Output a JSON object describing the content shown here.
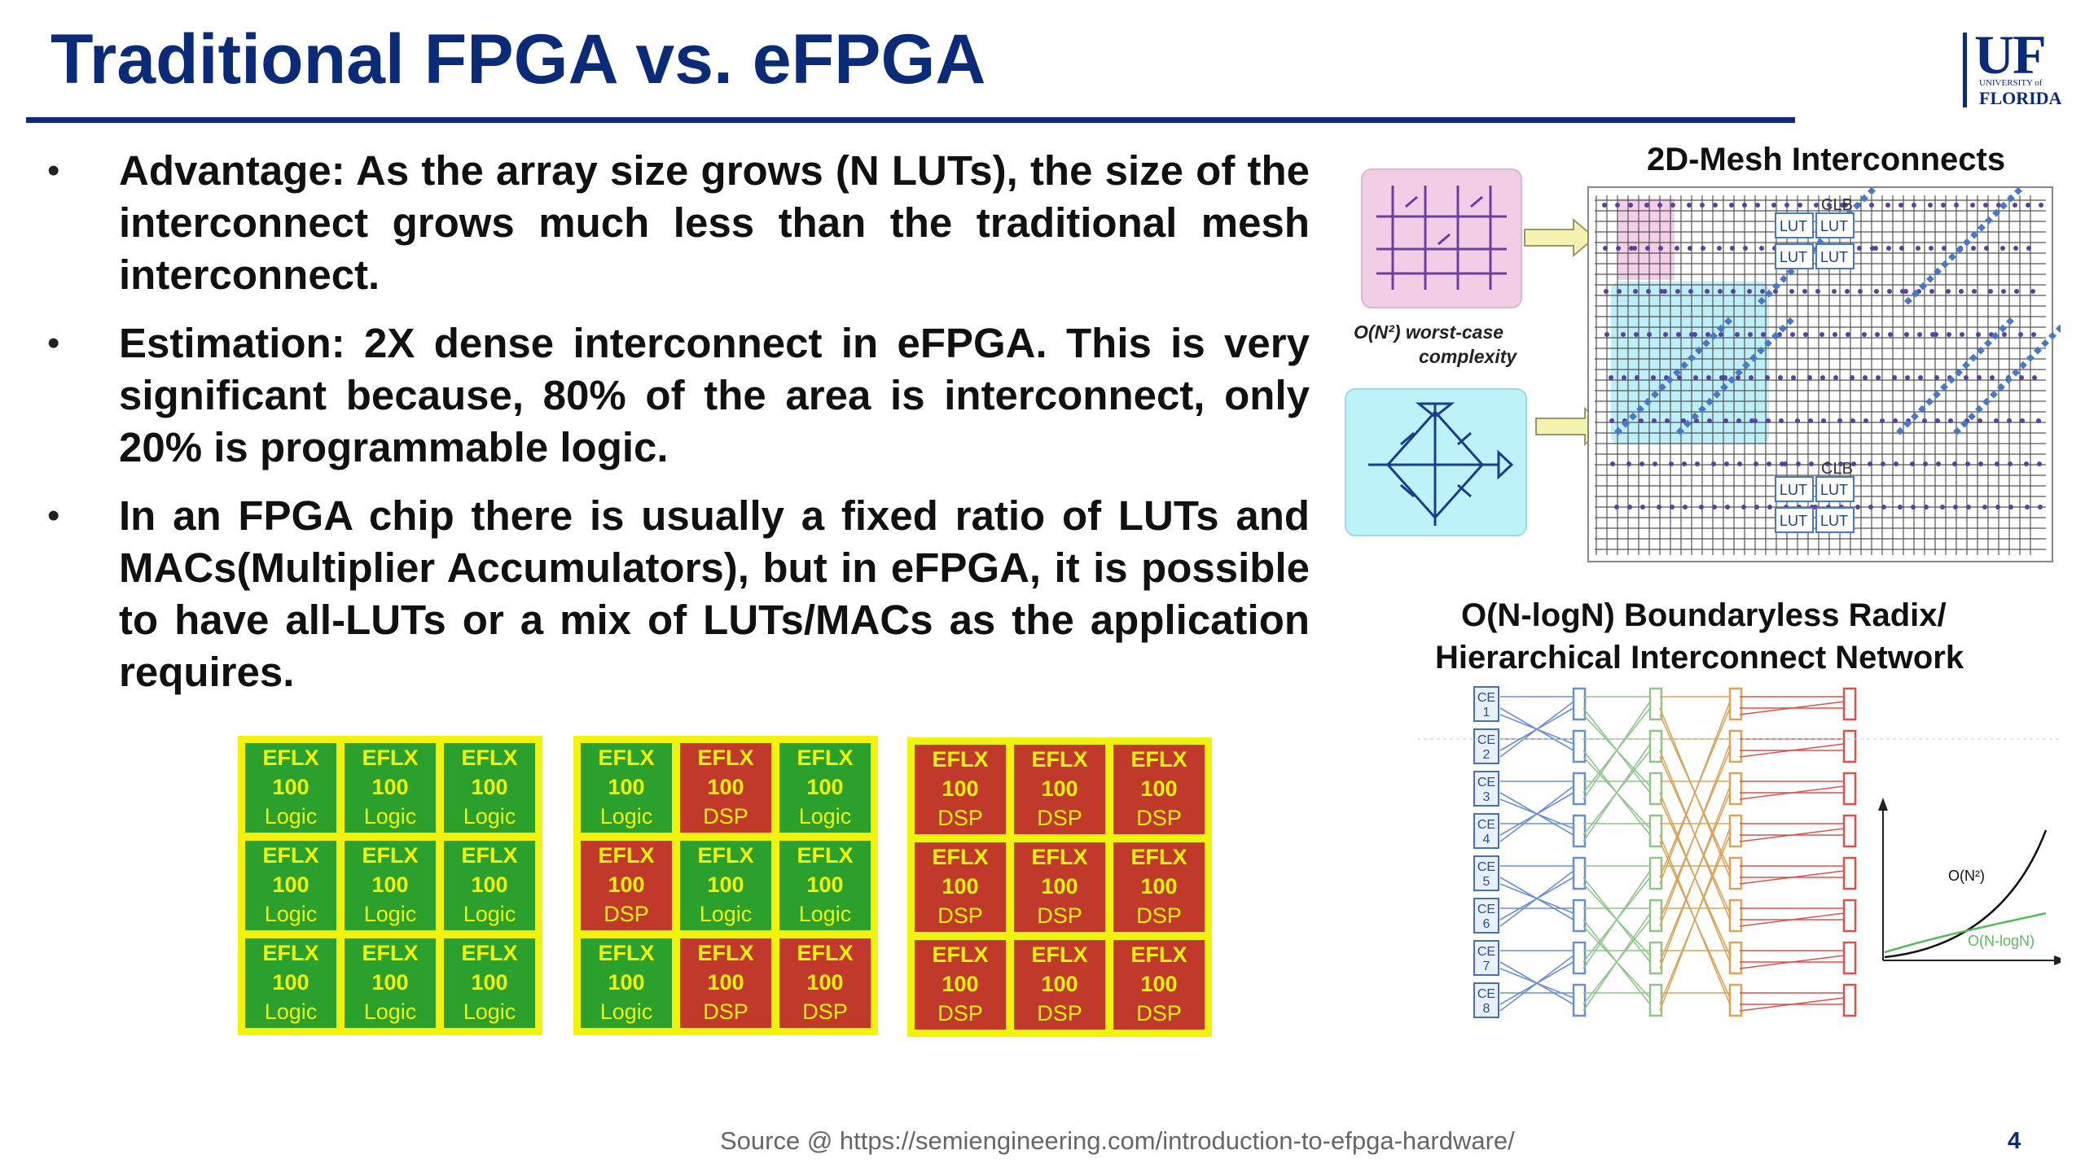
{
  "slide": {
    "title": "Traditional FPGA vs. eFPGA",
    "logo": {
      "name": "UF",
      "line1": "UNIVERSITY of",
      "line2": "FLORIDA"
    },
    "bullets": [
      "Advantage: As the array size grows (N LUTs), the size of the interconnect grows much less than the traditional mesh interconnect.",
      "Estimation: 2X dense interconnect in eFPGA. This is very significant because, 80% of the area is interconnect, only 20% is programmable logic.",
      "In an FPGA chip there is usually a fixed ratio of LUTs and MACs(Multiplier Accumulators), but in eFPGA, it is possible to have all-LUTs or a mix of LUTs/MACs as the application requires."
    ],
    "mesh_title": "2D-Mesh Interconnects",
    "complexity_label_1": "O(N²) worst-case",
    "complexity_label_2": "complexity",
    "clb_label": "CLB",
    "lut_label": "LUT",
    "network_title_1": "O(N-logN) Boundaryless Radix/",
    "network_title_2": "Hierarchical Interconnect Network",
    "ce_labels": [
      "CE 1",
      "CE 2",
      "CE 3",
      "CE 4",
      "CE 5",
      "CE 6",
      "CE 7",
      "CE 8"
    ],
    "growth_labels": {
      "n2": "O(N²)",
      "nlogn": "O(N-logN)"
    },
    "source": "Source @ https://semiengineering.com/introduction-to-efpga-hardware/",
    "page_number": "4"
  },
  "grids": [
    {
      "cells": [
        [
          "Logic",
          "Logic",
          "Logic"
        ],
        [
          "Logic",
          "Logic",
          "Logic"
        ],
        [
          "Logic",
          "Logic",
          "Logic"
        ]
      ]
    },
    {
      "cells": [
        [
          "Logic",
          "DSP",
          "Logic"
        ],
        [
          "DSP",
          "Logic",
          "Logic"
        ],
        [
          "Logic",
          "DSP",
          "DSP"
        ]
      ]
    },
    {
      "cells": [
        [
          "DSP",
          "DSP",
          "DSP"
        ],
        [
          "DSP",
          "DSP",
          "DSP"
        ],
        [
          "DSP",
          "DSP",
          "DSP"
        ]
      ]
    }
  ],
  "cell_line1": "EFLX",
  "cell_line2": "100",
  "colors": {
    "title": "#0b2a78",
    "logic_green": "#2ca02c",
    "dsp_red": "#c0392b",
    "cell_border": "#f2f20a",
    "cell_text": "#f4f400",
    "switch_pink": "#f1cde6",
    "switch_cyan": "#bdf2f8",
    "mesh_dot": "#5b3fa3",
    "mesh_blue": "#4a78c8"
  }
}
